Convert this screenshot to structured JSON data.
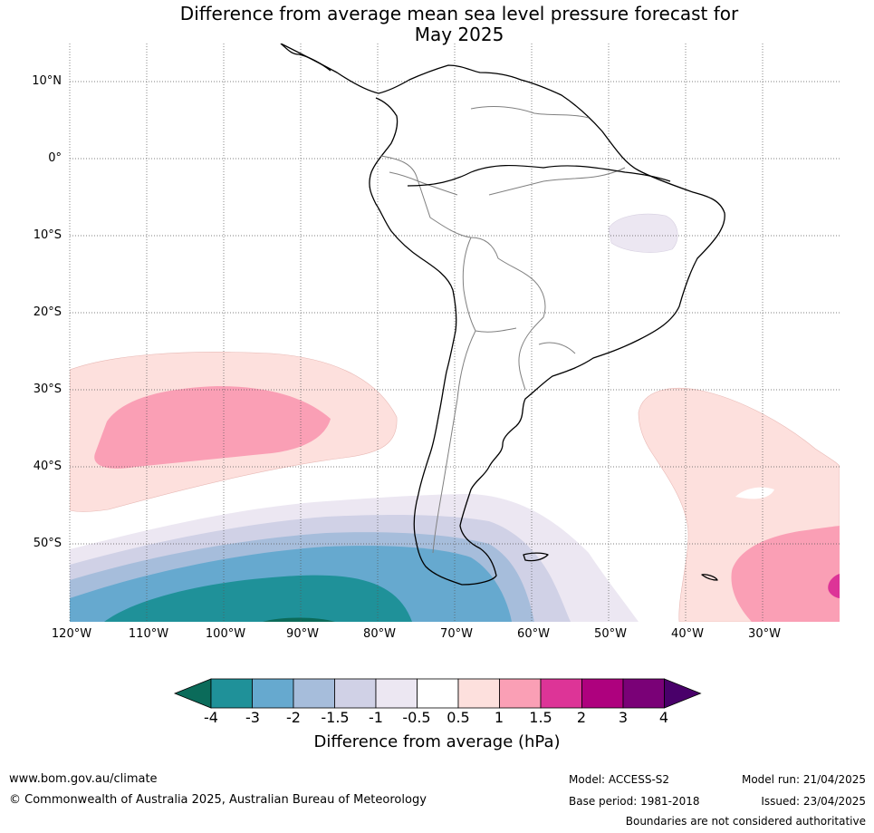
{
  "title": {
    "line1": "Difference from average mean sea level pressure forecast for",
    "line2": "May 2025"
  },
  "map": {
    "lat_labels": [
      "10°N",
      "0°",
      "10°S",
      "20°S",
      "30°S",
      "40°S",
      "50°S"
    ],
    "lon_labels": [
      "120°W",
      "110°W",
      "100°W",
      "90°W",
      "80°W",
      "70°W",
      "60°W",
      "50°W",
      "40°W",
      "30°W"
    ],
    "extent": {
      "lon": [
        -120,
        -20
      ],
      "lat": [
        -60,
        15
      ]
    }
  },
  "legend": {
    "label": "Difference from average (hPa)",
    "ticks": [
      "-4",
      "-3",
      "-2",
      "-1.5",
      "-1",
      "-0.5",
      "0.5",
      "1",
      "1.5",
      "2",
      "3",
      "4"
    ],
    "colors": [
      "#0b6b5a",
      "#1f9199",
      "#66a9cf",
      "#a6bddb",
      "#d0d1e6",
      "#ece7f2",
      "#ffffff",
      "#fde0dd",
      "#fa9fb5",
      "#dd3497",
      "#ae017e",
      "#7a0177",
      "#49006a"
    ]
  },
  "footer": {
    "website": "www.bom.gov.au/climate",
    "copyright": "© Commonwealth of Australia 2025, Australian Bureau of Meteorology",
    "model": "Model: ACCESS-S2",
    "base_period": "Base period: 1981-2018",
    "model_run": "Model run: 21/04/2025",
    "issued": "Issued: 23/04/2025",
    "disclaimer": "Boundaries are not considered authoritative"
  }
}
